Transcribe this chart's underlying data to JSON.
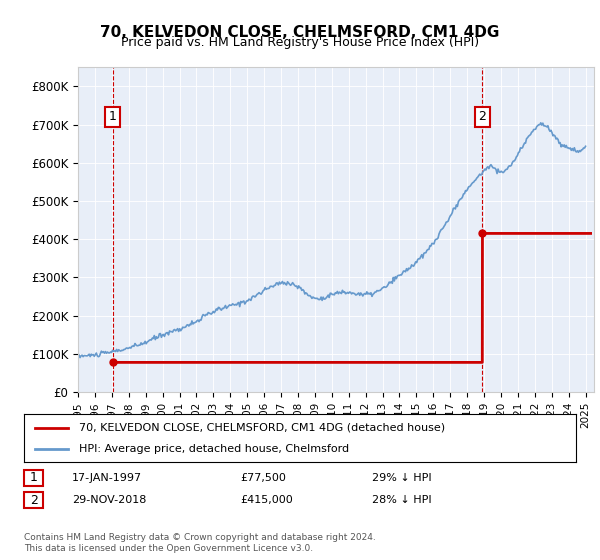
{
  "title": "70, KELVEDON CLOSE, CHELMSFORD, CM1 4DG",
  "subtitle": "Price paid vs. HM Land Registry's House Price Index (HPI)",
  "bg_color": "#e8eef8",
  "plot_bg_color": "#e8eef8",
  "hpi_color": "#6699cc",
  "price_color": "#cc0000",
  "ylabel_ticks": [
    "£0",
    "£100K",
    "£200K",
    "£300K",
    "£400K",
    "£500K",
    "£600K",
    "£700K",
    "£800K"
  ],
  "ytick_values": [
    0,
    100000,
    200000,
    300000,
    400000,
    500000,
    600000,
    700000,
    800000
  ],
  "ylim": [
    0,
    850000
  ],
  "sale1_date": "1997-01-17",
  "sale1_price": 77500,
  "sale2_date": "2018-11-29",
  "sale2_price": 415000,
  "legend1": "70, KELVEDON CLOSE, CHELMSFORD, CM1 4DG (detached house)",
  "legend2": "HPI: Average price, detached house, Chelmsford",
  "note1_label": "1",
  "note1_date": "17-JAN-1997",
  "note1_price": "£77,500",
  "note1_hpi": "29% ↓ HPI",
  "note2_label": "2",
  "note2_date": "29-NOV-2018",
  "note2_price": "£415,000",
  "note2_hpi": "28% ↓ HPI",
  "footer": "Contains HM Land Registry data © Crown copyright and database right 2024.\nThis data is licensed under the Open Government Licence v3.0."
}
